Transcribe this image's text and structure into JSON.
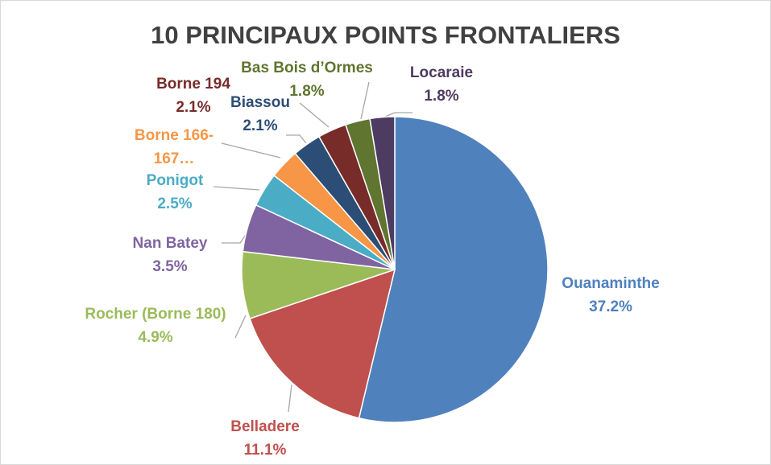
{
  "chart_data": {
    "type": "pie",
    "title": "10 PRINCIPAUX POINTS FRONTALIERS",
    "categories": [
      "Ouanaminthe",
      "Belladere",
      "Rocher (Borne 180)",
      "Nan Batey",
      "Ponigot",
      "Borne 166-167…",
      "Biassou",
      "Borne 194",
      "Bas Bois d’Ormes",
      "Locaraie"
    ],
    "values": [
      37.2,
      11.1,
      4.9,
      3.5,
      2.5,
      2.2,
      2.1,
      2.1,
      1.8,
      1.8
    ],
    "value_labels": [
      "37.2%",
      "11.1%",
      "4.9%",
      "3.5%",
      "2.5%",
      null,
      "2.1%",
      "2.1%",
      "1.8%",
      "1.8%"
    ],
    "colors": [
      "#4f81bd",
      "#c0504d",
      "#9bbb59",
      "#8064a2",
      "#4bacc6",
      "#f79646",
      "#2c4d75",
      "#772c2a",
      "#5f7530",
      "#4d3b62"
    ]
  }
}
